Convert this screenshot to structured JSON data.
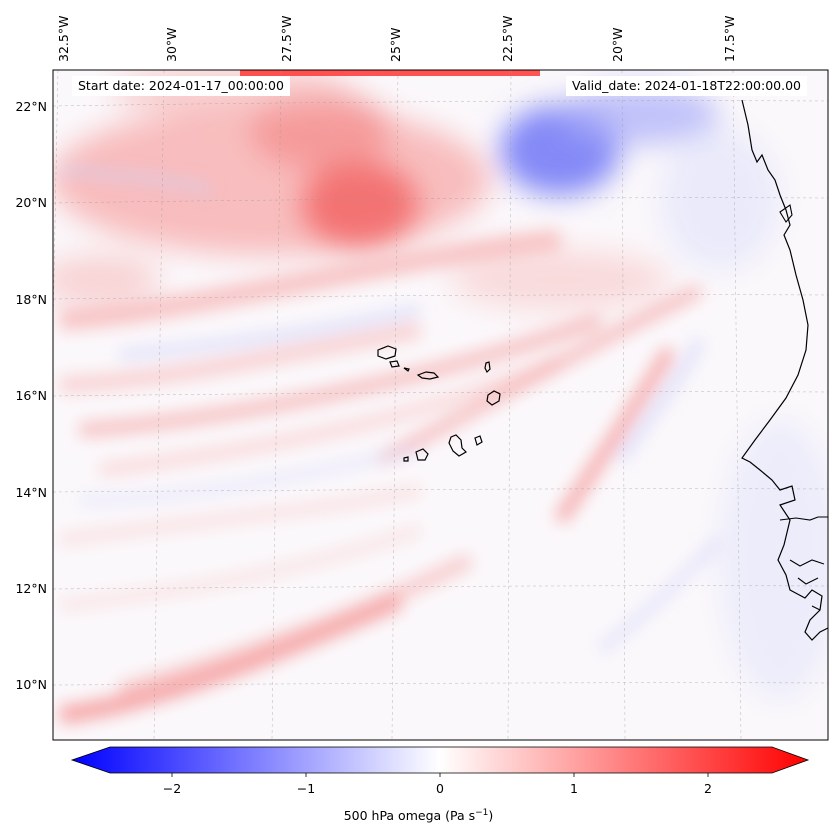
{
  "map": {
    "start_date": "Start date: 2024-01-17_00:00:00",
    "valid_date": "Valid_date: 2024-01-18T22:00:00.00",
    "lon_ticks": [
      "32.5°W",
      "30°W",
      "27.5°W",
      "25°W",
      "22.5°W",
      "20°W",
      "17.5°W"
    ],
    "lat_ticks": [
      "22°N",
      "20°N",
      "18°N",
      "16°N",
      "14°N",
      "12°N",
      "10°N"
    ],
    "extent": {
      "lon_min": -33.0,
      "lon_max": -16.0,
      "lat_min": 8.9,
      "lat_max": 22.8
    },
    "variable": "500 hPa omega"
  },
  "colorbar": {
    "label_prefix": "500 hPa omega (Pa s",
    "label_exp": "−1",
    "label_suffix": ")",
    "ticks": [
      "−2",
      "−1",
      "0",
      "1",
      "2"
    ],
    "range": [
      -2.6,
      2.6
    ],
    "colors": {
      "neg": "#0000ff",
      "mid": "#ffffff",
      "pos": "#ff0000"
    }
  }
}
